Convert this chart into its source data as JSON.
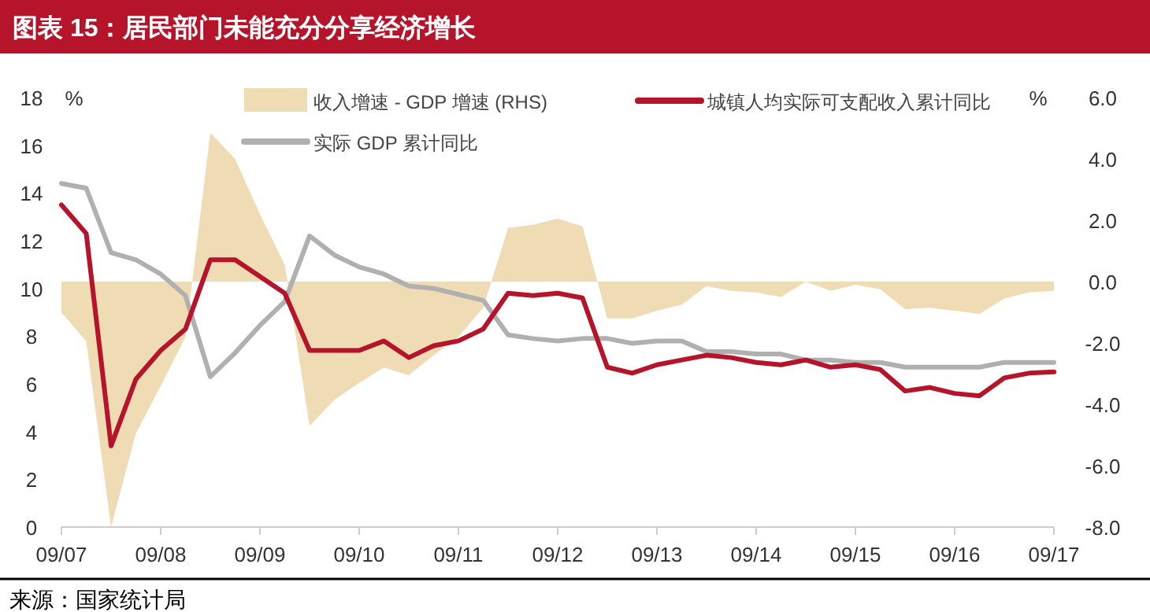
{
  "chart_data": {
    "type": "line",
    "title": "图表 15：居民部门未能充分分享经济增长",
    "categories": [
      "09/07",
      null,
      null,
      null,
      "09/08",
      null,
      null,
      null,
      "09/09",
      null,
      null,
      null,
      "09/10",
      null,
      null,
      null,
      "09/11",
      null,
      null,
      null,
      "09/12",
      null,
      null,
      null,
      "09/13",
      null,
      null,
      null,
      "09/14",
      null,
      null,
      null,
      "09/15",
      null,
      null,
      null,
      "09/16",
      null,
      null,
      null,
      "09/17"
    ],
    "series": [
      {
        "name": "收入增速 - GDP 增速 (RHS)",
        "type": "area",
        "axis": "y2",
        "color": "#f0dcb4",
        "values": [
          -1.0,
          -1.95,
          -8.0,
          -4.95,
          -3.4,
          -1.8,
          4.85,
          4.0,
          2.2,
          0.55,
          -4.7,
          -3.85,
          -3.3,
          -2.8,
          -3.05,
          -2.4,
          -1.8,
          -0.85,
          1.75,
          1.85,
          2.05,
          1.8,
          -1.2,
          -1.2,
          -0.95,
          -0.75,
          -0.15,
          -0.3,
          -0.35,
          -0.5,
          0,
          -0.3,
          -0.1,
          -0.25,
          -0.9,
          -0.85,
          -0.95,
          -1.05,
          -0.55,
          -0.35,
          -0.3
        ]
      },
      {
        "name": "实际 GDP 累计同比",
        "color": "#b0b0b0",
        "values": [
          14.4,
          14.2,
          11.5,
          11.2,
          10.6,
          9.7,
          6.3,
          7.3,
          8.45,
          9.45,
          12.2,
          11.4,
          10.9,
          10.6,
          10.1,
          10.0,
          9.75,
          9.5,
          8.05,
          7.9,
          7.8,
          7.9,
          7.9,
          7.7,
          7.8,
          7.8,
          7.35,
          7.35,
          7.25,
          7.25,
          7.0,
          7.0,
          6.9,
          6.9,
          6.7,
          6.7,
          6.7,
          6.7,
          6.9,
          6.9,
          6.9
        ]
      },
      {
        "name": "城镇人均实际可支配收入累计同比",
        "color": "#b5142a",
        "values": [
          13.5,
          12.3,
          3.4,
          6.2,
          7.4,
          8.3,
          11.2,
          11.2,
          10.5,
          9.8,
          7.4,
          7.4,
          7.4,
          7.8,
          7.1,
          7.6,
          7.8,
          8.3,
          9.8,
          9.7,
          9.8,
          9.6,
          6.7,
          6.45,
          6.8,
          7.0,
          7.2,
          7.1,
          6.9,
          6.8,
          7.0,
          6.7,
          6.8,
          6.6,
          5.7,
          5.85,
          5.6,
          5.5,
          6.25,
          6.45,
          6.5
        ]
      }
    ],
    "ylabel": "%",
    "y2label": "%",
    "ylim": [
      0,
      18
    ],
    "yticks": [
      0,
      2,
      4,
      6,
      8,
      10,
      12,
      14,
      16,
      18
    ],
    "y2lim": [
      -8,
      6
    ],
    "y2ticks": [
      {
        "value": 6,
        "label": "6.0"
      },
      {
        "value": 4,
        "label": "4.0"
      },
      {
        "value": 2,
        "label": "2.0"
      },
      {
        "value": 0,
        "label": "0.0"
      },
      {
        "value": -2,
        "label": "-2.0"
      },
      {
        "value": -4,
        "label": "-4.0"
      },
      {
        "value": -6,
        "label": "-6.0"
      },
      {
        "value": -8,
        "label": "-8.0"
      }
    ],
    "legend": "top",
    "grid": false,
    "annotations": [
      "来源：国家统计局"
    ]
  }
}
